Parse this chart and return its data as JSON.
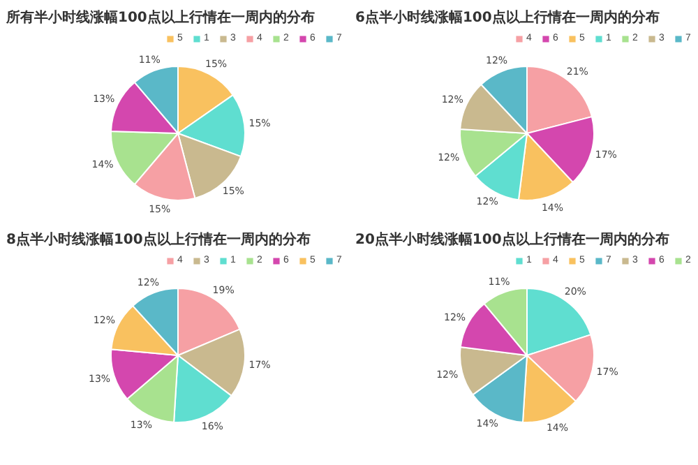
{
  "chart_data": [
    {
      "type": "pie",
      "title": "所有半小时线涨幅100点以上行情在一周内的分布",
      "categories": [
        "5",
        "1",
        "3",
        "4",
        "2",
        "6",
        "7"
      ],
      "values": [
        15,
        15,
        15,
        15,
        14,
        13,
        11
      ],
      "value_labels": [
        "15%",
        "15%",
        "15%",
        "15%",
        "14%",
        "13%",
        "11%"
      ],
      "colors": [
        "#f9c15f",
        "#5fded0",
        "#c9b98f",
        "#f6a0a4",
        "#a8e28f",
        "#d447ae",
        "#5ab8c8"
      ],
      "legend": "top right"
    },
    {
      "type": "pie",
      "title": "6点半小时线涨幅100点以上行情在一周内的分布",
      "categories": [
        "4",
        "6",
        "5",
        "1",
        "2",
        "3",
        "7"
      ],
      "values": [
        21,
        17,
        14,
        12,
        12,
        12,
        12
      ],
      "value_labels": [
        "21%",
        "17%",
        "14%",
        "12%",
        "12%",
        "12%",
        "12%"
      ],
      "colors": [
        "#f6a0a4",
        "#d447ae",
        "#f9c15f",
        "#5fded0",
        "#a8e28f",
        "#c9b98f",
        "#5ab8c8"
      ],
      "legend": "top right"
    },
    {
      "type": "pie",
      "title": "8点半小时线涨幅100点以上行情在一周内的分布",
      "categories": [
        "4",
        "3",
        "1",
        "2",
        "6",
        "5",
        "7"
      ],
      "values": [
        19,
        17,
        16,
        13,
        13,
        12,
        12
      ],
      "value_labels": [
        "19%",
        "17%",
        "16%",
        "13%",
        "13%",
        "12%",
        "12%"
      ],
      "colors": [
        "#f6a0a4",
        "#c9b98f",
        "#5fded0",
        "#a8e28f",
        "#d447ae",
        "#f9c15f",
        "#5ab8c8"
      ],
      "legend": "top right"
    },
    {
      "type": "pie",
      "title": "20点半小时线涨幅100点以上行情在一周内的分布",
      "categories": [
        "1",
        "4",
        "5",
        "7",
        "3",
        "6",
        "2"
      ],
      "values": [
        20,
        17,
        14,
        14,
        12,
        12,
        11
      ],
      "value_labels": [
        "20%",
        "17%",
        "14%",
        "14%",
        "12%",
        "12%",
        "11%"
      ],
      "colors": [
        "#5fded0",
        "#f6a0a4",
        "#f9c15f",
        "#5ab8c8",
        "#c9b98f",
        "#d447ae",
        "#a8e28f"
      ],
      "legend": "top right"
    }
  ]
}
